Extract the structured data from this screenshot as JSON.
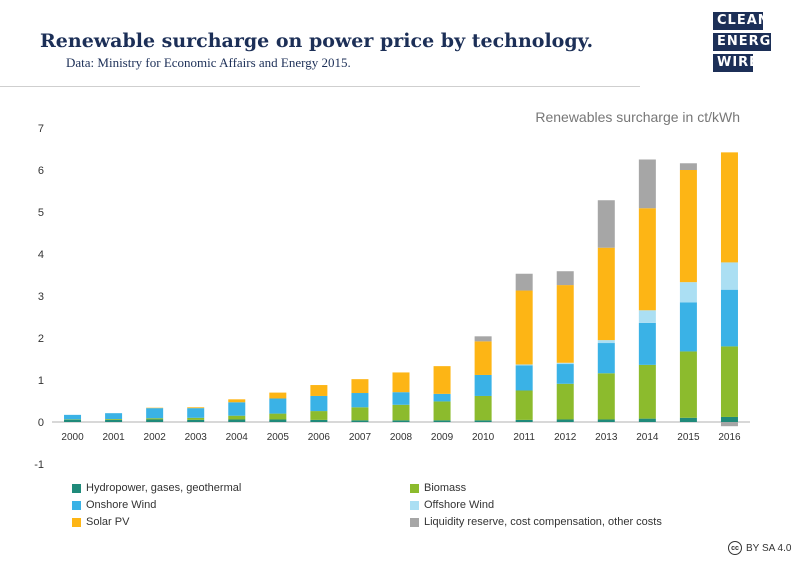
{
  "header": {
    "title": "Renewable surcharge on power price by technology.",
    "subtitle": "Data: Ministry for Economic Affairs and Energy 2015."
  },
  "logo": {
    "line1": "CLEAN",
    "line2": "ENERGY",
    "line3": "WIRE",
    "color": "#1c2f57"
  },
  "license": {
    "icon": "cc",
    "text": "BY SA 4.0"
  },
  "chart_data": {
    "type": "bar",
    "stacked": true,
    "title": "Renewables surcharge in ct/kWh",
    "ylim": [
      -1,
      7
    ],
    "yticks": [
      -1,
      0,
      1,
      2,
      3,
      4,
      5,
      6,
      7
    ],
    "grid": false,
    "legend_position": "bottom",
    "categories": [
      "2000",
      "2001",
      "2002",
      "2003",
      "2004",
      "2005",
      "2006",
      "2007",
      "2008",
      "2009",
      "2010",
      "2011",
      "2012",
      "2013",
      "2014",
      "2015",
      "2016"
    ],
    "series": [
      {
        "name": "Hydropower, gases, geothermal",
        "color": "#1f8a7a",
        "values": [
          0.05,
          0.05,
          0.06,
          0.05,
          0.06,
          0.06,
          0.05,
          0.04,
          0.04,
          0.04,
          0.04,
          0.05,
          0.06,
          0.06,
          0.08,
          0.1,
          0.12
        ]
      },
      {
        "name": "Biomass",
        "color": "#8cbb2d",
        "values": [
          0.01,
          0.02,
          0.03,
          0.05,
          0.09,
          0.14,
          0.21,
          0.31,
          0.37,
          0.45,
          0.58,
          0.7,
          0.85,
          1.1,
          1.28,
          1.58,
          1.68
        ]
      },
      {
        "name": "Onshore Wind",
        "color": "#3ab2e6",
        "values": [
          0.11,
          0.14,
          0.24,
          0.23,
          0.32,
          0.36,
          0.36,
          0.34,
          0.3,
          0.18,
          0.5,
          0.6,
          0.47,
          0.72,
          1.0,
          1.17,
          1.35
        ]
      },
      {
        "name": "Offshore Wind",
        "color": "#abdff3",
        "values": [
          0,
          0,
          0,
          0,
          0,
          0,
          0,
          0,
          0,
          0,
          0,
          0.02,
          0.03,
          0.07,
          0.3,
          0.48,
          0.65
        ]
      },
      {
        "name": "Solar PV",
        "color": "#fdb515",
        "values": [
          0,
          0,
          0.01,
          0.02,
          0.07,
          0.14,
          0.26,
          0.33,
          0.47,
          0.66,
          0.8,
          1.76,
          1.85,
          2.2,
          2.43,
          2.67,
          2.62
        ]
      },
      {
        "name": "Liquidity reserve, cost compensation, other costs",
        "color": "#a6a6a6",
        "values": [
          0,
          0,
          0,
          0,
          0,
          0,
          0,
          0,
          0,
          0,
          0.12,
          0.4,
          0.33,
          1.13,
          1.16,
          0.16,
          -0.1
        ]
      }
    ]
  }
}
